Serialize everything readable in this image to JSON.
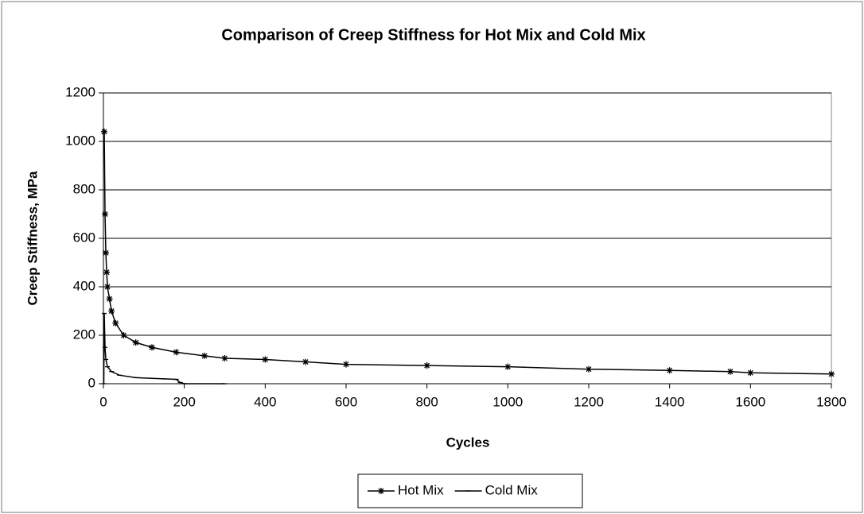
{
  "chart_data": {
    "type": "line",
    "title": "Comparison of Creep Stiffness for Hot Mix and Cold Mix",
    "x_label": "Cycles",
    "y_label": "Creep Stiffness, MPa",
    "xlim": [
      0,
      1800
    ],
    "xticks": [
      0,
      200,
      400,
      600,
      800,
      1000,
      1200,
      1400,
      1600,
      1800
    ],
    "ylim": [
      0,
      1200
    ],
    "yticks": [
      0,
      200,
      400,
      600,
      800,
      1000,
      1200
    ],
    "grid": true,
    "legend": "bottom",
    "series": [
      {
        "name": "Hot Mix",
        "color": "#000000",
        "marker": "star",
        "x": [
          2,
          4,
          6,
          8,
          10,
          15,
          20,
          30,
          50,
          80,
          120,
          180,
          250,
          300,
          400,
          500,
          600,
          800,
          1000,
          1200,
          1400,
          1550,
          1600,
          1800
        ],
        "values": [
          1040,
          700,
          540,
          460,
          400,
          350,
          300,
          250,
          200,
          170,
          150,
          130,
          115,
          105,
          100,
          90,
          80,
          75,
          70,
          60,
          55,
          50,
          45,
          40
        ]
      },
      {
        "name": "Cold Mix",
        "color": "#000000",
        "marker": "dash",
        "x": [
          1,
          2,
          4,
          6,
          10,
          20,
          40,
          80,
          150,
          180,
          190,
          200,
          300
        ],
        "values": [
          0,
          290,
          150,
          100,
          70,
          50,
          35,
          25,
          20,
          18,
          5,
          0,
          0
        ]
      }
    ]
  }
}
